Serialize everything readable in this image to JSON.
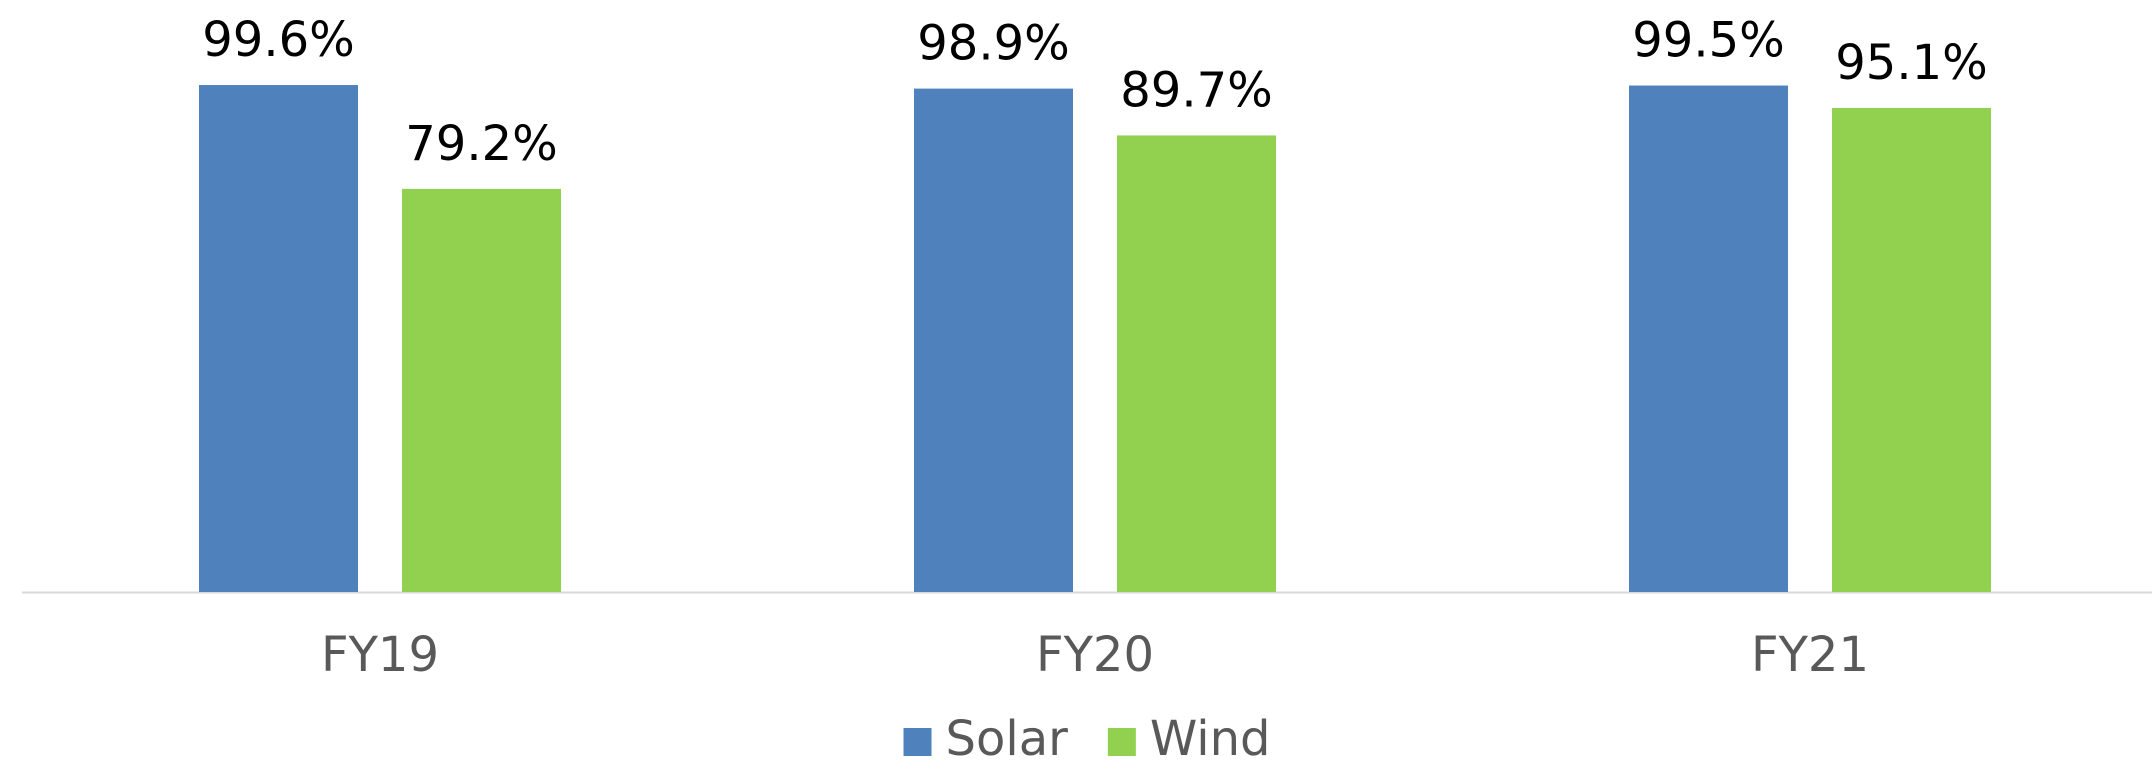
{
  "chart_data": {
    "type": "bar",
    "categories": [
      "FY19",
      "FY20",
      "FY21"
    ],
    "series": [
      {
        "name": "Solar",
        "color": "#4f81bd",
        "values": [
          99.6,
          98.9,
          99.5
        ],
        "value_labels": [
          "99.6%",
          "98.9%",
          "99.5%"
        ]
      },
      {
        "name": "Wind",
        "color": "#92d050",
        "values": [
          79.2,
          89.7,
          95.1
        ],
        "value_labels": [
          "79.2%",
          "89.7%",
          "95.1%"
        ]
      }
    ],
    "ylim": [
      0,
      100
    ],
    "legend": "bottom"
  }
}
